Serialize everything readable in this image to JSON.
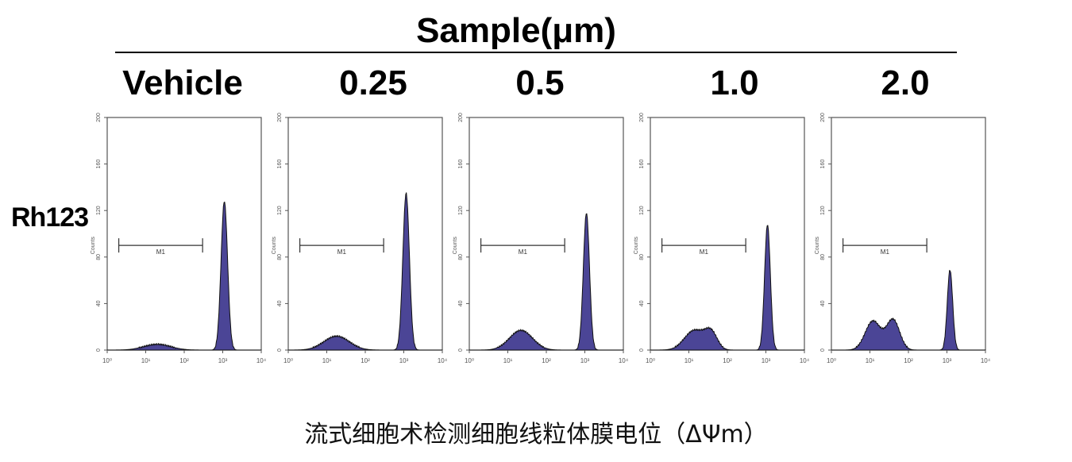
{
  "figure": {
    "header_title": "Sample(μm)",
    "row_label": "Rh123",
    "caption": "流式细胞术检测细胞线粒体膜电位（ΔΨm）"
  },
  "colors": {
    "histogram_fill": "#4b4596",
    "histogram_outline": "#111111",
    "axis": "#555555",
    "text": "#000000"
  },
  "chart_data": [
    {
      "type": "area",
      "title": "Vehicle",
      "xlabel": "",
      "ylabel": "Counts",
      "xscale": "log",
      "xlim": [
        1,
        10000
      ],
      "ylim": [
        0,
        200
      ],
      "xticks": [
        "10⁰",
        "10¹",
        "10²",
        "10³",
        "10⁴"
      ],
      "yticks": [
        "0",
        "40",
        "80",
        "120",
        "160",
        "200"
      ],
      "gate": {
        "label": "M1",
        "x_range": [
          2,
          300
        ],
        "y": 90
      },
      "peaks": [
        {
          "center": 20,
          "log_width": 0.35,
          "height": 5
        },
        {
          "center": 1100,
          "log_width": 0.085,
          "height": 128
        }
      ]
    },
    {
      "type": "area",
      "title": "0.25",
      "xlabel": "",
      "ylabel": "Counts",
      "xscale": "log",
      "xlim": [
        1,
        10000
      ],
      "ylim": [
        0,
        200
      ],
      "xticks": [
        "10⁰",
        "10¹",
        "10²",
        "10³",
        "10⁴"
      ],
      "yticks": [
        "0",
        "40",
        "80",
        "120",
        "160",
        "200"
      ],
      "gate": {
        "label": "M1",
        "x_range": [
          2,
          300
        ],
        "y": 90
      },
      "peaks": [
        {
          "center": 18,
          "log_width": 0.33,
          "height": 12
        },
        {
          "center": 1150,
          "log_width": 0.085,
          "height": 135
        }
      ]
    },
    {
      "type": "area",
      "title": "0.5",
      "xlabel": "",
      "ylabel": "Counts",
      "xscale": "log",
      "xlim": [
        1,
        10000
      ],
      "ylim": [
        0,
        200
      ],
      "xticks": [
        "10⁰",
        "10¹",
        "10²",
        "10³",
        "10⁴"
      ],
      "yticks": [
        "0",
        "40",
        "80",
        "120",
        "160",
        "200"
      ],
      "gate": {
        "label": "M1",
        "x_range": [
          2,
          300
        ],
        "y": 90
      },
      "peaks": [
        {
          "center": 22,
          "log_width": 0.3,
          "height": 17
        },
        {
          "center": 1100,
          "log_width": 0.08,
          "height": 118
        }
      ]
    },
    {
      "type": "area",
      "title": "1.0",
      "xlabel": "",
      "ylabel": "Counts",
      "xscale": "log",
      "xlim": [
        1,
        10000
      ],
      "ylim": [
        0,
        200
      ],
      "xticks": [
        "10⁰",
        "10¹",
        "10²",
        "10³",
        "10⁴"
      ],
      "yticks": [
        "0",
        "40",
        "80",
        "120",
        "160",
        "200"
      ],
      "gate": {
        "label": "M1",
        "x_range": [
          2,
          300
        ],
        "y": 90
      },
      "peaks": [
        {
          "center": 14,
          "log_width": 0.26,
          "height": 17
        },
        {
          "center": 38,
          "log_width": 0.16,
          "height": 14
        },
        {
          "center": 1100,
          "log_width": 0.075,
          "height": 108
        }
      ]
    },
    {
      "type": "area",
      "title": "2.0",
      "xlabel": "",
      "ylabel": "Counts",
      "xscale": "log",
      "xlim": [
        1,
        10000
      ],
      "ylim": [
        0,
        200
      ],
      "xticks": [
        "10⁰",
        "10¹",
        "10²",
        "10³",
        "10⁴"
      ],
      "yticks": [
        "0",
        "40",
        "80",
        "120",
        "160",
        "200"
      ],
      "gate": {
        "label": "M1",
        "x_range": [
          2,
          300
        ],
        "y": 90
      },
      "peaks": [
        {
          "center": 12,
          "log_width": 0.2,
          "height": 25
        },
        {
          "center": 40,
          "log_width": 0.17,
          "height": 26
        },
        {
          "center": 1200,
          "log_width": 0.07,
          "height": 69
        }
      ]
    }
  ]
}
